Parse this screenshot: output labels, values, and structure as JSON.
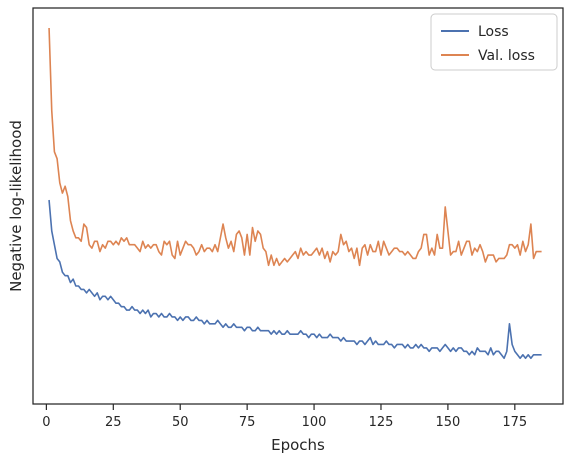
{
  "chart_data": {
    "type": "line",
    "title": "",
    "xlabel": "Epochs",
    "ylabel": "Negative log-likelihood",
    "xlim": [
      -5,
      193
    ],
    "ylim": [
      0,
      100
    ],
    "x_ticks": [
      0,
      25,
      50,
      75,
      100,
      125,
      150,
      175
    ],
    "y_ticks_shown": false,
    "grid": false,
    "legend_position": "top-right",
    "colors": {
      "Loss": "#4c72b0",
      "Val. loss": "#dd8452"
    },
    "series": [
      {
        "name": "Loss",
        "x": [
          1,
          2,
          3,
          4,
          5,
          6,
          7,
          8,
          9,
          10,
          11,
          12,
          13,
          14,
          15,
          16,
          17,
          18,
          19,
          20,
          21,
          22,
          23,
          24,
          25,
          26,
          27,
          28,
          29,
          30,
          31,
          32,
          33,
          34,
          35,
          36,
          37,
          38,
          39,
          40,
          41,
          42,
          43,
          44,
          45,
          46,
          47,
          48,
          49,
          50,
          51,
          52,
          53,
          54,
          55,
          56,
          57,
          58,
          59,
          60,
          61,
          62,
          63,
          64,
          65,
          66,
          67,
          68,
          69,
          70,
          71,
          72,
          73,
          74,
          75,
          76,
          77,
          78,
          79,
          80,
          81,
          82,
          83,
          84,
          85,
          86,
          87,
          88,
          89,
          90,
          91,
          92,
          93,
          94,
          95,
          96,
          97,
          98,
          99,
          100,
          101,
          102,
          103,
          104,
          105,
          106,
          107,
          108,
          109,
          110,
          111,
          112,
          113,
          114,
          115,
          116,
          117,
          118,
          119,
          120,
          121,
          122,
          123,
          124,
          125,
          126,
          127,
          128,
          129,
          130,
          131,
          132,
          133,
          134,
          135,
          136,
          137,
          138,
          139,
          140,
          141,
          142,
          143,
          144,
          145,
          146,
          147,
          148,
          149,
          150,
          151,
          152,
          153,
          154,
          155,
          156,
          157,
          158,
          159,
          160,
          161,
          162,
          163,
          164,
          165,
          166,
          167,
          168,
          169,
          170,
          171,
          172,
          173,
          174,
          175,
          176,
          177,
          178,
          179,
          180,
          181,
          182,
          183,
          184,
          185
        ],
        "y": [
          50,
          41,
          37,
          33,
          32,
          29,
          28,
          28,
          26,
          27,
          25,
          25,
          24,
          24,
          23,
          24,
          23,
          22,
          23,
          21,
          22,
          22,
          21,
          22,
          21,
          20,
          20,
          19,
          19,
          18,
          18,
          19,
          18,
          18,
          17,
          18,
          17,
          18,
          16,
          17,
          17,
          16,
          17,
          16,
          16,
          17,
          16,
          16,
          15,
          16,
          15,
          16,
          16,
          15,
          15,
          16,
          15,
          15,
          14,
          15,
          14,
          14,
          14,
          15,
          14,
          13,
          14,
          13,
          13,
          14,
          13,
          13,
          13,
          12,
          13,
          13,
          12,
          12,
          13,
          12,
          12,
          12,
          12,
          11,
          12,
          11,
          12,
          11,
          11,
          12,
          11,
          11,
          11,
          11,
          12,
          11,
          11,
          10,
          11,
          11,
          10,
          11,
          10,
          10,
          10,
          11,
          10,
          10,
          10,
          9,
          10,
          9,
          9,
          9,
          9,
          8,
          9,
          9,
          8,
          9,
          10,
          8,
          9,
          8,
          8,
          8,
          9,
          8,
          8,
          7,
          8,
          8,
          8,
          7,
          8,
          7,
          7,
          8,
          7,
          8,
          7,
          7,
          6,
          7,
          7,
          7,
          6,
          7,
          8,
          7,
          6,
          7,
          6,
          7,
          7,
          6,
          6,
          5,
          6,
          5,
          7,
          6,
          6,
          6,
          5,
          7,
          5,
          6,
          6,
          5,
          4,
          6,
          14,
          8,
          6,
          5,
          4,
          5,
          4,
          5,
          4,
          5,
          5,
          5,
          5
        ]
      },
      {
        "name": "Val. loss",
        "x": [
          1,
          2,
          3,
          4,
          5,
          6,
          7,
          8,
          9,
          10,
          11,
          12,
          13,
          14,
          15,
          16,
          17,
          18,
          19,
          20,
          21,
          22,
          23,
          24,
          25,
          26,
          27,
          28,
          29,
          30,
          31,
          32,
          33,
          34,
          35,
          36,
          37,
          38,
          39,
          40,
          41,
          42,
          43,
          44,
          45,
          46,
          47,
          48,
          49,
          50,
          51,
          52,
          53,
          54,
          55,
          56,
          57,
          58,
          59,
          60,
          61,
          62,
          63,
          64,
          65,
          66,
          67,
          68,
          69,
          70,
          71,
          72,
          73,
          74,
          75,
          76,
          77,
          78,
          79,
          80,
          81,
          82,
          83,
          84,
          85,
          86,
          87,
          88,
          89,
          90,
          91,
          92,
          93,
          94,
          95,
          96,
          97,
          98,
          99,
          100,
          101,
          102,
          103,
          104,
          105,
          106,
          107,
          108,
          109,
          110,
          111,
          112,
          113,
          114,
          115,
          116,
          117,
          118,
          119,
          120,
          121,
          122,
          123,
          124,
          125,
          126,
          127,
          128,
          129,
          130,
          131,
          132,
          133,
          134,
          135,
          136,
          137,
          138,
          139,
          140,
          141,
          142,
          143,
          144,
          145,
          146,
          147,
          148,
          149,
          150,
          151,
          152,
          153,
          154,
          155,
          156,
          157,
          158,
          159,
          160,
          161,
          162,
          163,
          164,
          165,
          166,
          167,
          168,
          169,
          170,
          171,
          172,
          173,
          174,
          175,
          176,
          177,
          178,
          179,
          180,
          181,
          182,
          183,
          184,
          185
        ],
        "y": [
          100,
          76,
          64,
          62,
          55,
          52,
          54,
          51,
          44,
          41,
          39,
          39,
          38,
          43,
          42,
          37,
          36,
          38,
          38,
          35,
          37,
          36,
          38,
          38,
          37,
          38,
          37,
          39,
          38,
          39,
          37,
          37,
          37,
          36,
          35,
          38,
          36,
          37,
          36,
          37,
          37,
          35,
          34,
          38,
          37,
          38,
          34,
          33,
          38,
          34,
          36,
          38,
          37,
          37,
          36,
          34,
          35,
          37,
          35,
          36,
          36,
          35,
          37,
          35,
          39,
          43,
          39,
          36,
          38,
          35,
          40,
          41,
          39,
          34,
          40,
          34,
          42,
          38,
          41,
          40,
          36,
          35,
          31,
          34,
          31,
          33,
          31,
          32,
          33,
          32,
          33,
          34,
          35,
          33,
          36,
          34,
          35,
          34,
          34,
          35,
          36,
          34,
          36,
          33,
          35,
          32,
          35,
          34,
          35,
          40,
          37,
          38,
          35,
          36,
          33,
          36,
          31,
          36,
          37,
          34,
          37,
          35,
          35,
          38,
          34,
          38,
          36,
          34,
          35,
          36,
          36,
          35,
          35,
          34,
          35,
          34,
          33,
          33,
          35,
          36,
          40,
          40,
          34,
          36,
          34,
          40,
          36,
          36,
          48,
          41,
          34,
          35,
          35,
          38,
          34,
          36,
          38,
          38,
          34,
          36,
          35,
          37,
          35,
          32,
          34,
          34,
          34,
          32,
          33,
          33,
          33,
          34,
          37,
          37,
          36,
          37,
          34,
          38,
          35,
          37,
          43,
          33,
          35,
          35,
          35
        ]
      }
    ]
  }
}
